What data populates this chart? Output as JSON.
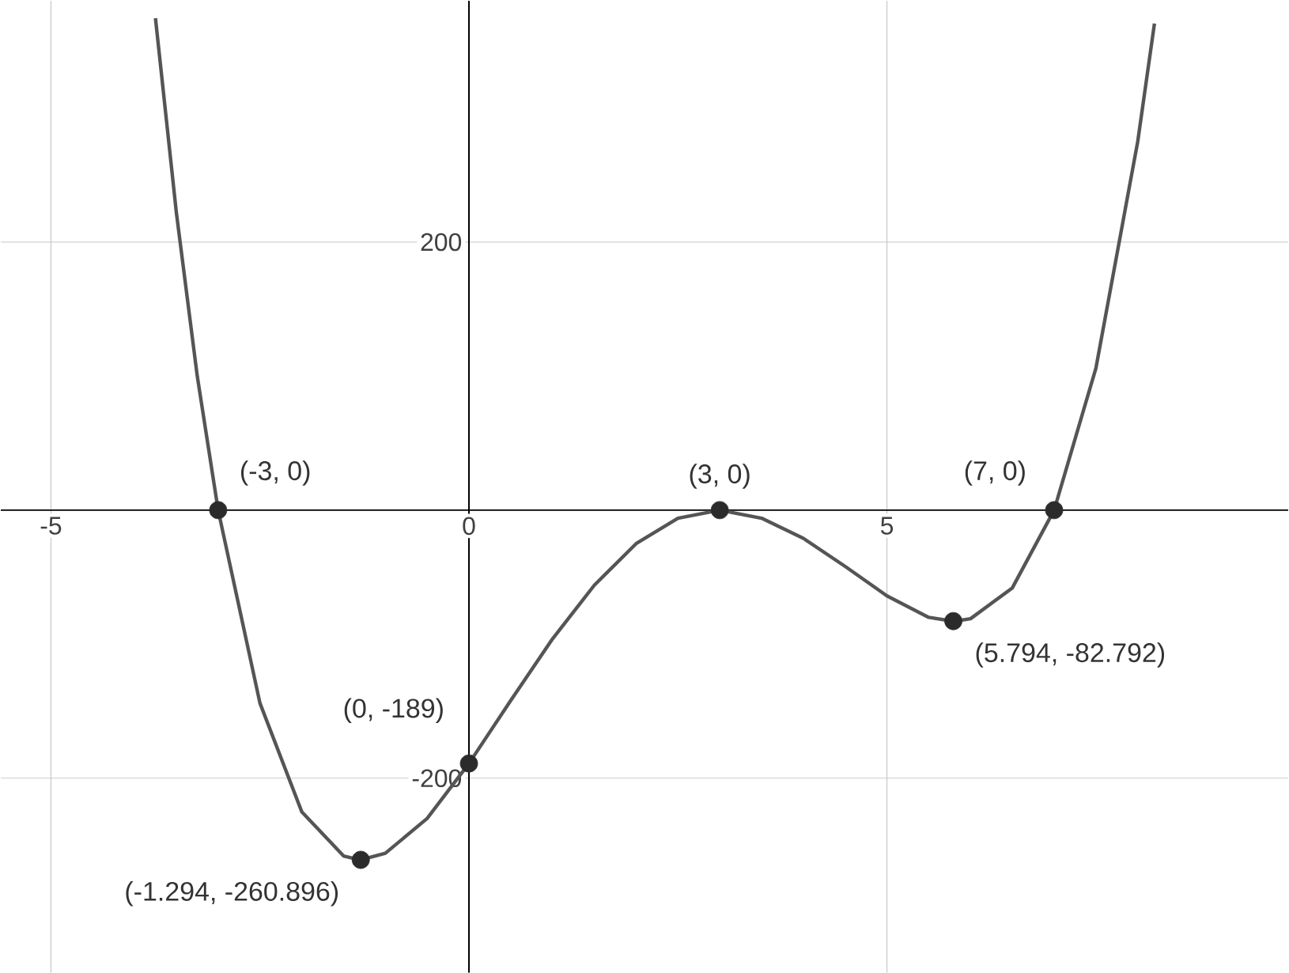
{
  "chart_data": {
    "type": "line",
    "xlim": [
      -5.6,
      9.8
    ],
    "ylim": [
      -345,
      380
    ],
    "xticks": [
      -5,
      0,
      5
    ],
    "yticks": [
      -200,
      200
    ],
    "grid": true,
    "series": [
      {
        "color": "#555555",
        "marker": "none",
        "x": [
          -3.75,
          -3.5,
          -3.25,
          -3,
          -2.5,
          -2,
          -1.5,
          -1.3,
          -1,
          -0.5,
          0,
          0.5,
          1,
          1.5,
          2,
          2.5,
          3,
          3.5,
          4,
          4.5,
          5,
          5.5,
          5.8,
          6,
          6.5,
          7,
          7.5,
          8,
          8.2
        ],
        "values": [
          367,
          222,
          100,
          0,
          -144,
          -225,
          -258,
          -261,
          -256,
          -230,
          -189,
          -142,
          -96,
          -56,
          -25,
          -6,
          0,
          -6,
          -21,
          -42,
          -64,
          -80,
          -83,
          -81,
          -58,
          0,
          106,
          275,
          363
        ]
      },
      {
        "type": "scatter",
        "color": "#2b2b2b",
        "marker": "circle",
        "x": [
          -3,
          3,
          7,
          0,
          -1.294,
          5.794
        ],
        "values": [
          0,
          0,
          0,
          -189,
          -260.896,
          -82.792
        ]
      }
    ],
    "annotations": [
      {
        "text": "(-3, 0)",
        "x": -3,
        "y": 0
      },
      {
        "text": "(3, 0)",
        "x": 3,
        "y": 0
      },
      {
        "text": "(7, 0)",
        "x": 7,
        "y": 0
      },
      {
        "text": "(0, -189)",
        "x": 0,
        "y": -189
      },
      {
        "text": "(-1.294, -260.896)",
        "x": -1.294,
        "y": -260.896
      },
      {
        "text": "(5.794, -82.792)",
        "x": 5.794,
        "y": -82.792
      }
    ]
  }
}
